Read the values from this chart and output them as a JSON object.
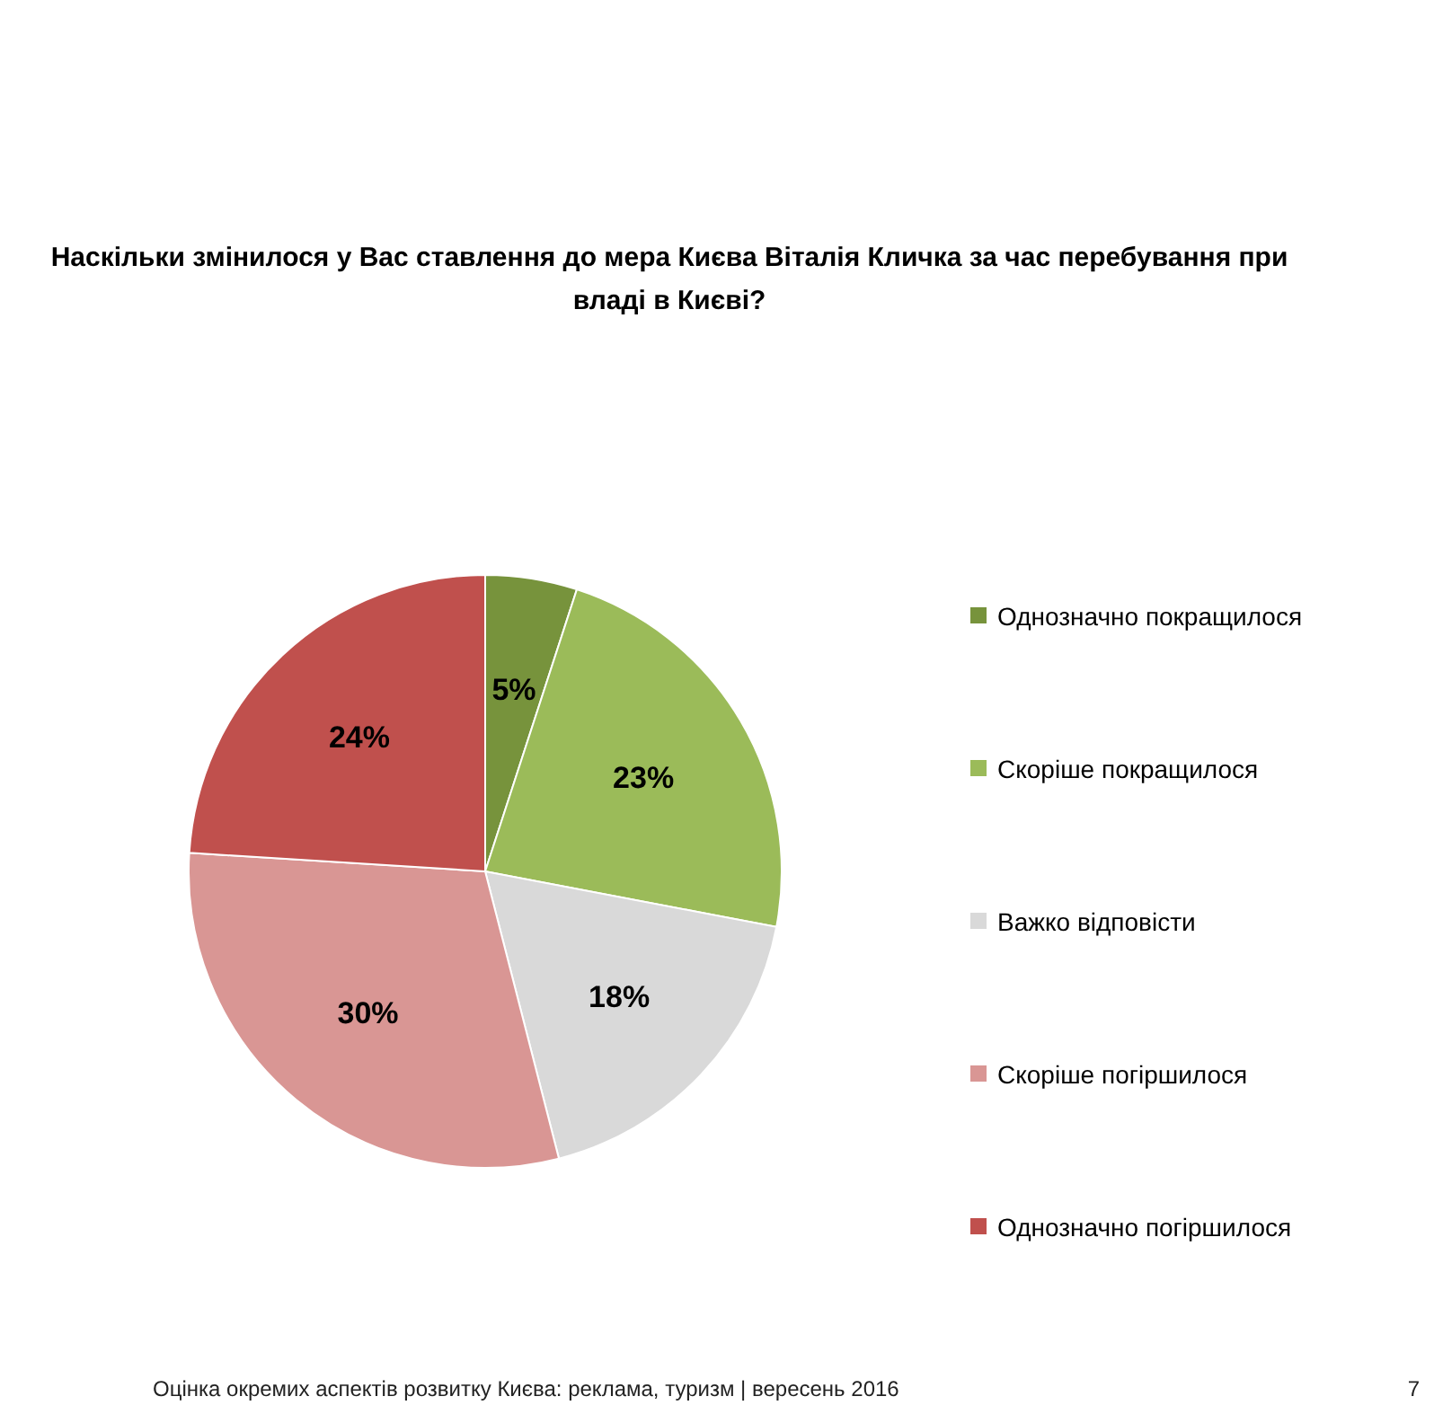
{
  "chart_data": {
    "type": "pie",
    "title": "Наскільки змінилося у Вас ставлення до мера Києва Віталія Кличка за час перебування при владі в Києві?",
    "categories": [
      "Однозначно покращилося",
      "Скоріше покращилося",
      "Важко відповісти",
      "Скоріше погіршилося",
      "Однозначно погіршилося"
    ],
    "values": [
      5,
      23,
      18,
      30,
      24
    ],
    "colors": [
      "#77933c",
      "#9bbb59",
      "#d9d9d9",
      "#d99694",
      "#c0504d"
    ],
    "value_labels": [
      "5%",
      "23%",
      "18%",
      "30%",
      "24%"
    ],
    "legend": "right",
    "annotations": [
      "Оцінка окремих аспектів розвитку Києва: реклама, туризм | вересень 2016",
      "7"
    ]
  }
}
